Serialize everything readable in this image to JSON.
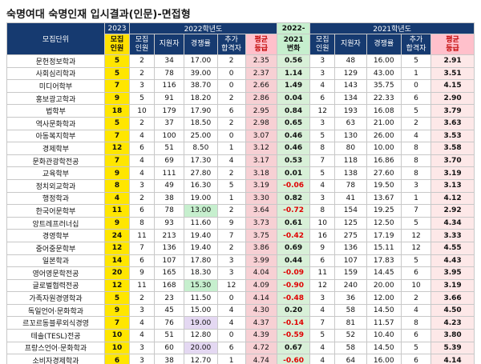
{
  "title": "숙명여대 숙명인재 입시결과(인문)-면접형",
  "header": {
    "dept": "모집단위",
    "y2023": "2023",
    "y2022": "2022학년도",
    "chg_top": "2022-",
    "y2021": "2021학년도",
    "cap23_a": "모집",
    "cap23_b": "인원",
    "cap_a": "모집",
    "cap_b": "인원",
    "applicants": "지원자",
    "ratio": "경쟁률",
    "extra_a": "추가",
    "extra_b": "합격자",
    "avg_a": "평균",
    "avg_b": "등급",
    "chg_a": "2021",
    "chg_b": "변화"
  },
  "rows": [
    {
      "dept": "문헌정보학과",
      "cap23": "5",
      "cap22": "2",
      "app22": "34",
      "ratio22": "17.00",
      "extra22": "2",
      "avg22": "2.35",
      "chg": "0.56",
      "cap21": "3",
      "app21": "48",
      "ratio21": "16.00",
      "extra21": "5",
      "avg21": "2.91"
    },
    {
      "dept": "사회심리학과",
      "cap23": "5",
      "cap22": "2",
      "app22": "78",
      "ratio22": "39.00",
      "extra22": "0",
      "avg22": "2.37",
      "chg": "1.14",
      "cap21": "3",
      "app21": "129",
      "ratio21": "43.00",
      "extra21": "1",
      "avg21": "3.51"
    },
    {
      "dept": "미디어학부",
      "cap23": "7",
      "cap22": "3",
      "app22": "116",
      "ratio22": "38.70",
      "extra22": "0",
      "avg22": "2.66",
      "chg": "1.49",
      "cap21": "4",
      "app21": "143",
      "ratio21": "35.75",
      "extra21": "0",
      "avg21": "4.15"
    },
    {
      "dept": "홍보광고학과",
      "cap23": "9",
      "cap22": "5",
      "app22": "91",
      "ratio22": "18.20",
      "extra22": "2",
      "avg22": "2.86",
      "chg": "0.04",
      "cap21": "6",
      "app21": "134",
      "ratio21": "22.33",
      "extra21": "6",
      "avg21": "2.90"
    },
    {
      "dept": "법학부",
      "cap23": "18",
      "cap22": "10",
      "app22": "179",
      "ratio22": "17.90",
      "extra22": "6",
      "avg22": "2.95",
      "chg": "0.84",
      "cap21": "12",
      "app21": "193",
      "ratio21": "16.08",
      "extra21": "5",
      "avg21": "3.79"
    },
    {
      "dept": "역사문화학과",
      "cap23": "5",
      "cap22": "2",
      "app22": "37",
      "ratio22": "18.50",
      "extra22": "2",
      "avg22": "2.98",
      "chg": "0.65",
      "cap21": "3",
      "app21": "63",
      "ratio21": "21.00",
      "extra21": "2",
      "avg21": "3.63"
    },
    {
      "dept": "아동복지학부",
      "cap23": "7",
      "cap22": "4",
      "app22": "100",
      "ratio22": "25.00",
      "extra22": "0",
      "avg22": "3.07",
      "chg": "0.46",
      "cap21": "5",
      "app21": "130",
      "ratio21": "26.00",
      "extra21": "4",
      "avg21": "3.53"
    },
    {
      "dept": "경제학부",
      "cap23": "12",
      "cap22": "6",
      "app22": "51",
      "ratio22": "8.50",
      "extra22": "1",
      "avg22": "3.12",
      "chg": "0.46",
      "cap21": "8",
      "app21": "80",
      "ratio21": "10.00",
      "extra21": "8",
      "avg21": "3.58"
    },
    {
      "dept": "문화관광학전공",
      "cap23": "7",
      "cap22": "4",
      "app22": "69",
      "ratio22": "17.30",
      "extra22": "4",
      "avg22": "3.17",
      "chg": "0.53",
      "cap21": "7",
      "app21": "118",
      "ratio21": "16.86",
      "extra21": "8",
      "avg21": "3.70"
    },
    {
      "dept": "교육학부",
      "cap23": "9",
      "cap22": "4",
      "app22": "111",
      "ratio22": "27.80",
      "extra22": "2",
      "avg22": "3.18",
      "chg": "0.01",
      "cap21": "5",
      "app21": "138",
      "ratio21": "27.60",
      "extra21": "8",
      "avg21": "3.19"
    },
    {
      "dept": "정치외교학과",
      "cap23": "8",
      "cap22": "3",
      "app22": "49",
      "ratio22": "16.30",
      "extra22": "5",
      "avg22": "3.19",
      "chg": "-0.06",
      "cap21": "4",
      "app21": "78",
      "ratio21": "19.50",
      "extra21": "3",
      "avg21": "3.13"
    },
    {
      "dept": "행정학과",
      "cap23": "4",
      "cap22": "2",
      "app22": "38",
      "ratio22": "19.00",
      "extra22": "1",
      "avg22": "3.30",
      "chg": "0.82",
      "cap21": "3",
      "app21": "41",
      "ratio21": "13.67",
      "extra21": "1",
      "avg21": "4.12"
    },
    {
      "dept": "한국어문학부",
      "cap23": "11",
      "cap22": "6",
      "app22": "78",
      "ratio22": "13.00",
      "extra22": "2",
      "avg22": "3.64",
      "chg": "-0.72",
      "cap21": "8",
      "app21": "154",
      "ratio21": "19.25",
      "extra21": "7",
      "avg21": "2.92"
    },
    {
      "dept": "앙트레프러너십",
      "cap23": "9",
      "cap22": "8",
      "app22": "93",
      "ratio22": "11.60",
      "extra22": "9",
      "avg22": "3.73",
      "chg": "0.61",
      "cap21": "10",
      "app21": "125",
      "ratio21": "12.50",
      "extra21": "5",
      "avg21": "4.34"
    },
    {
      "dept": "경영학부",
      "cap23": "24",
      "cap22": "11",
      "app22": "213",
      "ratio22": "19.40",
      "extra22": "7",
      "avg22": "3.75",
      "chg": "-0.42",
      "cap21": "16",
      "app21": "275",
      "ratio21": "17.19",
      "extra21": "12",
      "avg21": "3.33"
    },
    {
      "dept": "중어중문학부",
      "cap23": "12",
      "cap22": "7",
      "app22": "136",
      "ratio22": "19.40",
      "extra22": "2",
      "avg22": "3.86",
      "chg": "0.69",
      "cap21": "9",
      "app21": "136",
      "ratio21": "15.11",
      "extra21": "12",
      "avg21": "4.55"
    },
    {
      "dept": "일본학과",
      "cap23": "14",
      "cap22": "6",
      "app22": "107",
      "ratio22": "17.80",
      "extra22": "3",
      "avg22": "3.99",
      "chg": "0.44",
      "cap21": "6",
      "app21": "107",
      "ratio21": "17.83",
      "extra21": "5",
      "avg21": "4.43"
    },
    {
      "dept": "영어영문학전공",
      "cap23": "20",
      "cap22": "9",
      "app22": "165",
      "ratio22": "18.30",
      "extra22": "3",
      "avg22": "4.04",
      "chg": "-0.09",
      "cap21": "11",
      "app21": "159",
      "ratio21": "14.45",
      "extra21": "6",
      "avg21": "3.95"
    },
    {
      "dept": "글로벌협력전공",
      "cap23": "12",
      "cap22": "11",
      "app22": "168",
      "ratio22": "15.30",
      "extra22": "12",
      "avg22": "4.09",
      "chg": "-0.90",
      "cap21": "12",
      "app21": "240",
      "ratio21": "20.00",
      "extra21": "10",
      "avg21": "3.19"
    },
    {
      "dept": "가족자원경영학과",
      "cap23": "5",
      "cap22": "2",
      "app22": "23",
      "ratio22": "11.50",
      "extra22": "0",
      "avg22": "4.14",
      "chg": "-0.48",
      "cap21": "3",
      "app21": "36",
      "ratio21": "12.00",
      "extra21": "2",
      "avg21": "3.66"
    },
    {
      "dept": "독일언어·문화학과",
      "cap23": "9",
      "cap22": "3",
      "app22": "45",
      "ratio22": "15.00",
      "extra22": "4",
      "avg22": "4.30",
      "chg": "0.20",
      "cap21": "4",
      "app21": "58",
      "ratio21": "14.50",
      "extra21": "4",
      "avg21": "4.50"
    },
    {
      "dept": "르꼬르동블루외식경영",
      "cap23": "7",
      "cap22": "4",
      "app22": "76",
      "ratio22": "19.00",
      "extra22": "4",
      "avg22": "4.37",
      "chg": "-0.14",
      "cap21": "7",
      "app21": "81",
      "ratio21": "11.57",
      "extra21": "8",
      "avg21": "4.23"
    },
    {
      "dept": "테솔(TESL)전공",
      "cap23": "10",
      "cap22": "4",
      "app22": "51",
      "ratio22": "12.80",
      "extra22": "0",
      "avg22": "4.39",
      "chg": "-0.59",
      "cap21": "5",
      "app21": "52",
      "ratio21": "10.40",
      "extra21": "6",
      "avg21": "3.80"
    },
    {
      "dept": "프랑스언어·문화학과",
      "cap23": "10",
      "cap22": "3",
      "app22": "60",
      "ratio22": "20.00",
      "extra22": "6",
      "avg22": "4.72",
      "chg": "0.67",
      "cap21": "4",
      "app21": "58",
      "ratio21": "14.50",
      "extra21": "5",
      "avg21": "5.39"
    },
    {
      "dept": "소비자경제학과",
      "cap23": "6",
      "cap22": "3",
      "app22": "38",
      "ratio22": "12.70",
      "extra22": "1",
      "avg22": "4.74",
      "chg": "-0.60",
      "cap21": "4",
      "app21": "64",
      "ratio21": "16.00",
      "extra21": "6",
      "avg21": "4.14"
    }
  ],
  "highlights": {
    "green_ratio_rows": [
      12,
      18
    ],
    "purple_ratio_rows": [
      21,
      23
    ]
  },
  "colors": {
    "header_bg": "#163a70",
    "cap23_bg": "#ffe600",
    "avg_bg": "#f7d0d4",
    "change_bg": "#d8f0d8",
    "negative_text": "#e00000",
    "ratio_green": "#c6efce",
    "ratio_purple": "#e4d8f2"
  }
}
